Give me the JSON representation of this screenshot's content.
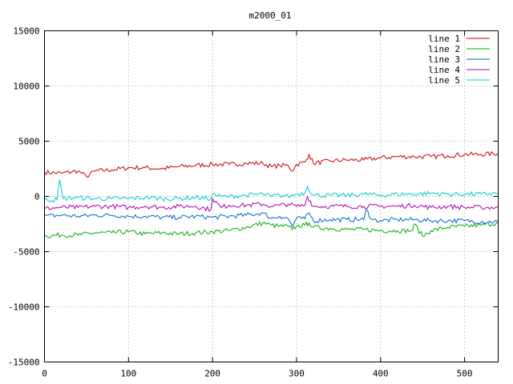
{
  "chart_data": {
    "type": "line",
    "title": "m2000_01",
    "xlabel": "",
    "ylabel": "",
    "xlim": [
      0,
      540
    ],
    "ylim": [
      -15000,
      15000
    ],
    "x_ticks": [
      0,
      100,
      200,
      300,
      400,
      500
    ],
    "y_ticks": [
      -15000,
      -10000,
      -5000,
      0,
      5000,
      10000,
      15000
    ],
    "grid": true,
    "legend_position": "top-right",
    "series": [
      {
        "name": "line 1",
        "color": "#cc0000",
        "x": [
          0,
          20,
          40,
          50,
          60,
          80,
          100,
          120,
          140,
          160,
          180,
          200,
          220,
          240,
          260,
          270,
          280,
          290,
          295,
          300,
          310,
          315,
          320,
          340,
          360,
          380,
          400,
          420,
          440,
          460,
          480,
          500,
          520,
          540
        ],
        "y": [
          2200,
          2100,
          2300,
          1800,
          2300,
          2400,
          2600,
          2600,
          2500,
          2700,
          2800,
          2900,
          2900,
          3000,
          3000,
          2700,
          2800,
          2800,
          2300,
          2900,
          3100,
          3800,
          3000,
          3200,
          3300,
          3300,
          3500,
          3600,
          3600,
          3600,
          3700,
          3800,
          3800,
          3900
        ]
      },
      {
        "name": "line 2",
        "color": "#00aa00",
        "x": [
          0,
          20,
          40,
          60,
          80,
          100,
          120,
          140,
          160,
          180,
          200,
          220,
          240,
          260,
          270,
          280,
          290,
          295,
          300,
          310,
          315,
          320,
          340,
          360,
          380,
          400,
          420,
          438,
          440,
          450,
          460,
          480,
          500,
          520,
          540
        ],
        "y": [
          -3600,
          -3500,
          -3500,
          -3300,
          -3300,
          -3200,
          -3400,
          -3300,
          -3400,
          -3300,
          -3200,
          -3100,
          -2800,
          -2400,
          -2600,
          -2700,
          -2700,
          -3000,
          -2700,
          -2600,
          -2400,
          -2800,
          -2900,
          -3000,
          -3000,
          -3100,
          -3100,
          -3100,
          -2500,
          -3600,
          -3100,
          -2800,
          -2700,
          -2600,
          -2400
        ]
      },
      {
        "name": "line 3",
        "color": "#0066cc",
        "x": [
          0,
          20,
          40,
          60,
          80,
          100,
          120,
          140,
          160,
          180,
          200,
          220,
          240,
          260,
          270,
          280,
          290,
          295,
          300,
          310,
          315,
          320,
          340,
          360,
          380,
          383,
          390,
          400,
          420,
          440,
          460,
          480,
          500,
          520,
          540
        ],
        "y": [
          -1800,
          -1700,
          -1800,
          -1700,
          -1700,
          -1800,
          -1800,
          -1900,
          -1900,
          -1800,
          -1900,
          -1800,
          -1700,
          -1500,
          -2000,
          -1800,
          -2000,
          -2700,
          -2000,
          -2000,
          -1500,
          -2200,
          -2100,
          -2100,
          -2100,
          -1200,
          -2100,
          -2200,
          -2100,
          -2100,
          -2200,
          -2200,
          -2200,
          -2300,
          -2300
        ]
      },
      {
        "name": "line 4",
        "color": "#aa00aa",
        "x": [
          0,
          20,
          40,
          60,
          80,
          100,
          120,
          140,
          160,
          180,
          198,
          200,
          210,
          220,
          240,
          260,
          270,
          280,
          290,
          300,
          310,
          313,
          320,
          340,
          360,
          380,
          400,
          420,
          440,
          460,
          480,
          500,
          520,
          540
        ],
        "y": [
          -1100,
          -1000,
          -1000,
          -900,
          -900,
          -1000,
          -900,
          -1000,
          -900,
          -900,
          -1200,
          -200,
          -1000,
          -800,
          -800,
          -700,
          -900,
          -800,
          -700,
          -900,
          -800,
          0,
          -900,
          -900,
          -900,
          -900,
          -900,
          -900,
          -800,
          -1000,
          -900,
          -1000,
          -1000,
          -1000
        ]
      },
      {
        "name": "line 5",
        "color": "#00cccc",
        "x": [
          0,
          15,
          18,
          22,
          40,
          60,
          80,
          100,
          120,
          140,
          160,
          180,
          198,
          200,
          210,
          220,
          240,
          260,
          270,
          280,
          290,
          300,
          310,
          313,
          320,
          340,
          360,
          380,
          400,
          420,
          440,
          460,
          480,
          500,
          520,
          540
        ],
        "y": [
          -300,
          -300,
          1500,
          -200,
          -100,
          -200,
          -200,
          -200,
          -100,
          -200,
          -200,
          -100,
          -200,
          200,
          0,
          0,
          100,
          200,
          0,
          100,
          0,
          200,
          300,
          900,
          100,
          100,
          100,
          200,
          100,
          200,
          200,
          300,
          200,
          200,
          200,
          300
        ]
      }
    ]
  }
}
